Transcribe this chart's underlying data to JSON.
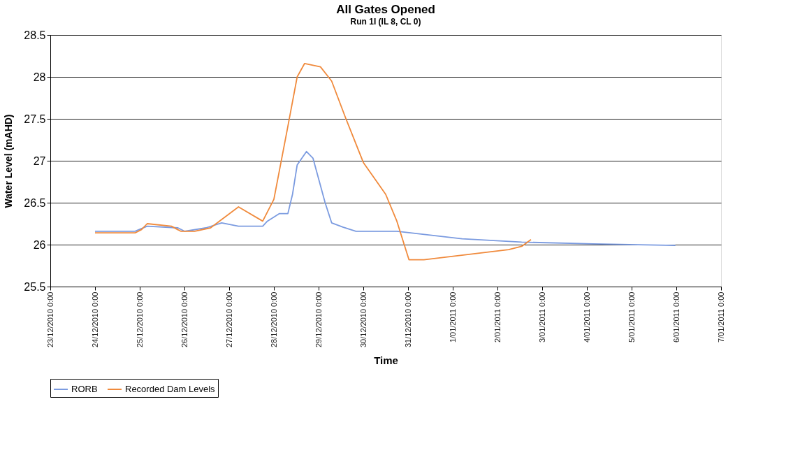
{
  "chart_data": {
    "type": "line",
    "title": "All Gates Opened",
    "subtitle": "Run 1I (IL 8, CL 0)",
    "xlabel": "Time",
    "ylabel": "Water Level (mAHD)",
    "xlim": [
      "2010-12-23T00:00",
      "2011-01-07T00:00"
    ],
    "ylim": [
      25.5,
      28.5
    ],
    "xticks": [
      {
        "value": "2010-12-23T00:00",
        "label": "23/12/2010 0:00"
      },
      {
        "value": "2010-12-24T00:00",
        "label": "24/12/2010 0:00"
      },
      {
        "value": "2010-12-25T00:00",
        "label": "25/12/2010 0:00"
      },
      {
        "value": "2010-12-26T00:00",
        "label": "26/12/2010 0:00"
      },
      {
        "value": "2010-12-27T00:00",
        "label": "27/12/2010 0:00"
      },
      {
        "value": "2010-12-28T00:00",
        "label": "28/12/2010 0:00"
      },
      {
        "value": "2010-12-29T00:00",
        "label": "29/12/2010 0:00"
      },
      {
        "value": "2010-12-30T00:00",
        "label": "30/12/2010 0:00"
      },
      {
        "value": "2010-12-31T00:00",
        "label": "31/12/2010 0:00"
      },
      {
        "value": "2011-01-01T00:00",
        "label": "1/01/2011 0:00"
      },
      {
        "value": "2011-01-02T00:00",
        "label": "2/01/2011 0:00"
      },
      {
        "value": "2011-01-03T00:00",
        "label": "3/01/2011 0:00"
      },
      {
        "value": "2011-01-04T00:00",
        "label": "4/01/2011 0:00"
      },
      {
        "value": "2011-01-05T00:00",
        "label": "5/01/2011 0:00"
      },
      {
        "value": "2011-01-06T00:00",
        "label": "6/01/2011 0:00"
      },
      {
        "value": "2011-01-07T00:00",
        "label": "7/01/2011 0:00"
      }
    ],
    "yticks": [
      25.5,
      26,
      26.5,
      27,
      27.5,
      28,
      28.5
    ],
    "grid": "y",
    "legend": "bottom",
    "series": [
      {
        "name": "RORB",
        "color": "#7b9be0",
        "x": [
          "2010-12-24T00:00",
          "2010-12-24T21:30",
          "2010-12-25T04:00",
          "2010-12-25T20:30",
          "2010-12-26T00:00",
          "2010-12-26T11:30",
          "2010-12-26T20:00",
          "2010-12-27T05:00",
          "2010-12-27T18:00",
          "2010-12-27T20:30",
          "2010-12-28T03:00",
          "2010-12-28T07:30",
          "2010-12-28T10:00",
          "2010-12-28T12:30",
          "2010-12-28T17:30",
          "2010-12-28T21:00",
          "2010-12-29T03:30",
          "2010-12-29T07:00",
          "2010-12-29T13:00",
          "2010-12-29T20:00",
          "2010-12-30T18:00",
          "2011-01-01T05:00",
          "2011-01-02T13:00",
          "2011-01-04T03:00",
          "2011-01-05T23:30"
        ],
        "values": [
          26.16,
          26.16,
          26.22,
          26.2,
          26.16,
          26.2,
          26.26,
          26.22,
          26.22,
          26.28,
          26.37,
          26.37,
          26.6,
          26.95,
          27.11,
          27.03,
          26.5,
          26.26,
          26.21,
          26.16,
          26.16,
          26.07,
          26.03,
          26.01,
          25.99
        ]
      },
      {
        "name": "Recorded Dam Levels",
        "color": "#f08a3c",
        "x": [
          "2010-12-24T00:00",
          "2010-12-24T21:30",
          "2010-12-25T01:00",
          "2010-12-25T04:00",
          "2010-12-25T17:00",
          "2010-12-25T22:00",
          "2010-12-26T05:30",
          "2010-12-26T14:00",
          "2010-12-27T05:00",
          "2010-12-27T18:00",
          "2010-12-28T00:00",
          "2010-12-28T07:30",
          "2010-12-28T12:30",
          "2010-12-28T16:30",
          "2010-12-29T01:00",
          "2010-12-29T07:00",
          "2010-12-29T14:30",
          "2010-12-30T00:00",
          "2010-12-30T12:00",
          "2010-12-30T18:00",
          "2010-12-31T00:30",
          "2010-12-31T08:30",
          "2011-01-02T06:00",
          "2011-01-02T13:00",
          "2011-01-02T18:00"
        ],
        "values": [
          26.14,
          26.14,
          26.18,
          26.25,
          26.22,
          26.16,
          26.16,
          26.2,
          26.45,
          26.28,
          26.54,
          27.41,
          28.0,
          28.16,
          28.12,
          27.95,
          27.51,
          26.98,
          26.6,
          26.28,
          25.82,
          25.82,
          25.94,
          25.98,
          26.06
        ]
      }
    ]
  }
}
